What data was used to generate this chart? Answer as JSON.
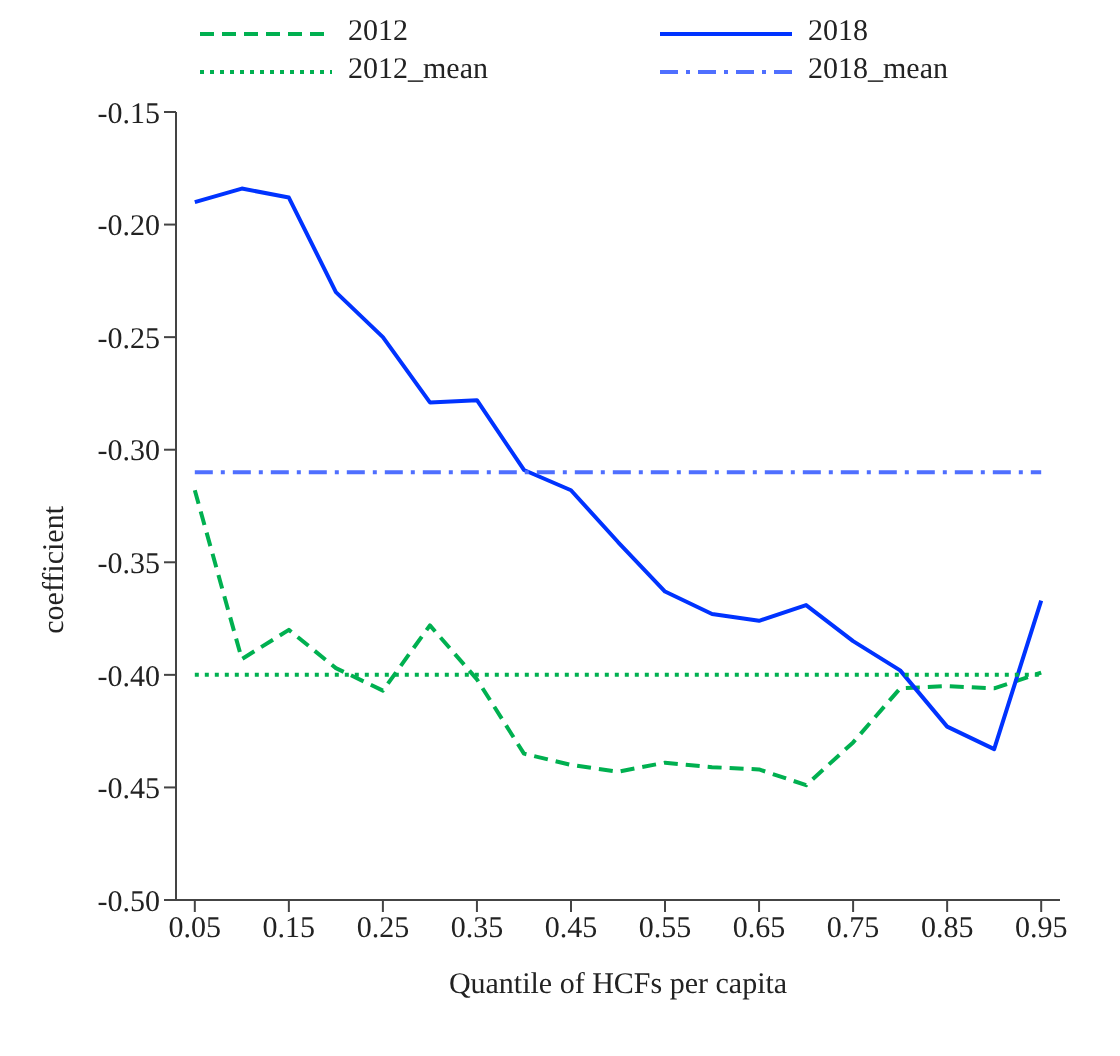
{
  "chart_data": {
    "type": "line",
    "xlabel": "Quantile of HCFs per capita",
    "ylabel": "coefficient",
    "x": [
      0.05,
      0.1,
      0.15,
      0.2,
      0.25,
      0.3,
      0.35,
      0.4,
      0.45,
      0.5,
      0.55,
      0.6,
      0.65,
      0.7,
      0.75,
      0.8,
      0.85,
      0.9,
      0.95
    ],
    "xlim": [
      0.03,
      0.97
    ],
    "xticks": [
      0.05,
      0.15,
      0.25,
      0.35,
      0.45,
      0.55,
      0.65,
      0.75,
      0.85,
      0.95
    ],
    "ylim": [
      -0.5,
      -0.15
    ],
    "yticks": [
      {
        "value": -0.5,
        "label": "-0.50"
      },
      -0.45,
      {
        "value": -0.4,
        "label": "-0.40"
      },
      -0.35,
      {
        "value": -0.3,
        "label": "-0.30"
      },
      -0.25,
      {
        "value": -0.2,
        "label": "-0.20"
      },
      -0.15
    ],
    "grid": false,
    "legend": "top",
    "marker": "none",
    "series": [
      {
        "name": "2012",
        "color": "#00b050",
        "line_style": "dashed",
        "values": [
          -0.318,
          -0.393,
          -0.38,
          -0.397,
          -0.407,
          -0.378,
          -0.402,
          -0.435,
          -0.44,
          -0.443,
          -0.439,
          -0.441,
          -0.442,
          -0.449,
          -0.43,
          -0.406,
          -0.405,
          -0.406,
          -0.399
        ]
      },
      {
        "name": "2018",
        "color": "#0033ff",
        "line_style": "solid",
        "values": [
          -0.19,
          -0.184,
          -0.188,
          -0.23,
          -0.25,
          -0.279,
          -0.278,
          -0.309,
          -0.318,
          -0.341,
          -0.363,
          -0.373,
          -0.376,
          -0.369,
          -0.385,
          -0.398,
          -0.423,
          -0.433,
          -0.367
        ]
      },
      {
        "name": "2012_mean",
        "color": "#00b050",
        "line_style": "dotted",
        "values": [
          -0.4,
          -0.4,
          -0.4,
          -0.4,
          -0.4,
          -0.4,
          -0.4,
          -0.4,
          -0.4,
          -0.4,
          -0.4,
          -0.4,
          -0.4,
          -0.4,
          -0.4,
          -0.4,
          -0.4,
          -0.4,
          -0.4
        ]
      },
      {
        "name": "2018_mean",
        "color": "#4f6fff",
        "line_style": "dashdot",
        "values": [
          -0.31,
          -0.31,
          -0.31,
          -0.31,
          -0.31,
          -0.31,
          -0.31,
          -0.31,
          -0.31,
          -0.31,
          -0.31,
          -0.31,
          -0.31,
          -0.31,
          -0.31,
          -0.31,
          -0.31,
          -0.31,
          -0.31
        ]
      }
    ]
  }
}
